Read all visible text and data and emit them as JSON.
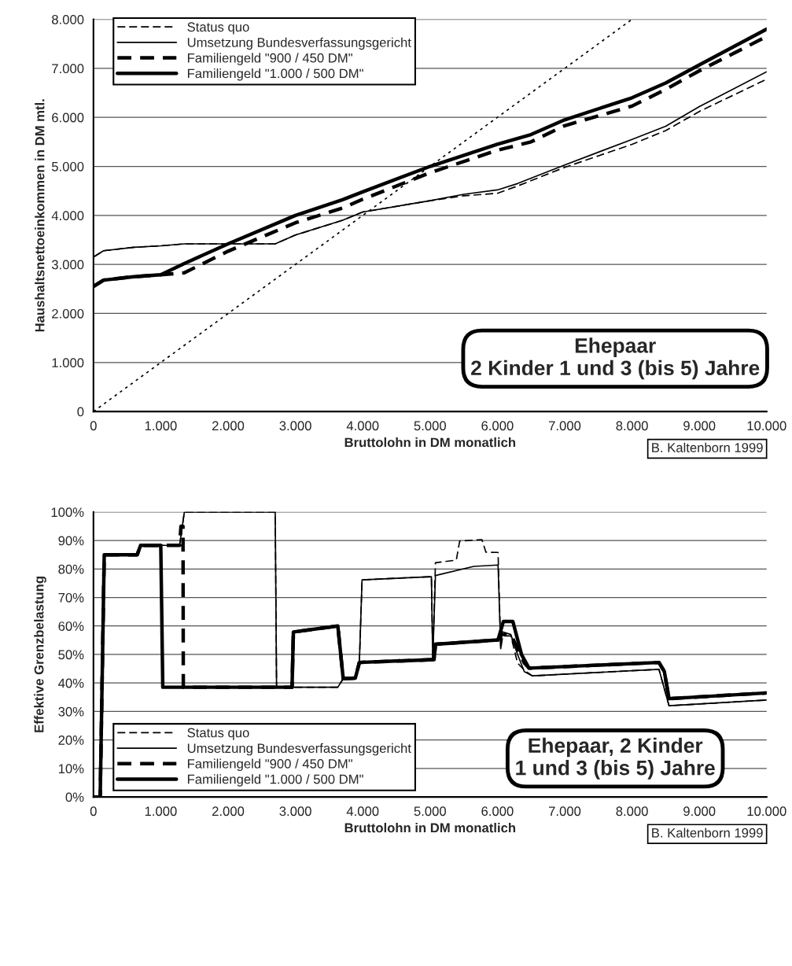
{
  "chart_data": [
    {
      "type": "line",
      "xlabel": "Bruttolohn in DM monatlich",
      "ylabel": "Haushaltsnettoeinkommen in DM mtl.",
      "xlim": [
        0,
        10000
      ],
      "ylim": [
        0,
        8000
      ],
      "xticks": [
        0,
        {
          "value": 1000,
          "label": "1.000"
        },
        {
          "value": 2000,
          "label": "2.000"
        },
        {
          "value": 3000,
          "label": "3.000"
        },
        {
          "value": 4000,
          "label": "4.000"
        },
        {
          "value": 5000,
          "label": "5.000"
        },
        {
          "value": 6000,
          "label": "6.000"
        },
        {
          "value": 7000,
          "label": "7.000"
        },
        {
          "value": 8000,
          "label": "8.000"
        },
        {
          "value": 9000,
          "label": "9.000"
        },
        {
          "value": 10000,
          "label": "10.000"
        }
      ],
      "yticks": [
        0,
        {
          "value": 1000,
          "label": "1.000"
        },
        {
          "value": 2000,
          "label": "2.000"
        },
        {
          "value": 3000,
          "label": "3.000"
        },
        {
          "value": 4000,
          "label": "4.000"
        },
        {
          "value": 5000,
          "label": "5.000"
        },
        {
          "value": 6000,
          "label": "6.000"
        },
        {
          "value": 7000,
          "label": "7.000"
        },
        {
          "value": 8000,
          "label": "8.000"
        }
      ],
      "grid": "y",
      "legend": "top left",
      "marker": "none",
      "annotations": [
        "Ehepaar\n2 Kinder 1 und 3 (bis 5) Jahre",
        "B. Kaltenborn 1999"
      ],
      "series": [
        {
          "name": "Status quo",
          "color": "#000000",
          "line_style": "dashed",
          "x": [
            0,
            150,
            600,
            1000,
            1350,
            2700,
            3000,
            3700,
            4000,
            5000,
            5500,
            6000,
            6300,
            7000,
            8000,
            8500,
            9000,
            10000
          ],
          "values": [
            3150,
            3280,
            3350,
            3380,
            3420,
            3420,
            3600,
            3900,
            4070,
            4300,
            4400,
            4450,
            4600,
            4980,
            5450,
            5730,
            6120,
            6780
          ]
        },
        {
          "name": "Umsetzung Bundesverfassungsgericht",
          "color": "#000000",
          "line_style": "solid",
          "x": [
            0,
            150,
            600,
            1000,
            1350,
            2700,
            3000,
            3700,
            4000,
            5000,
            5500,
            6000,
            6300,
            7000,
            8000,
            8500,
            9000,
            10000
          ],
          "values": [
            3150,
            3280,
            3350,
            3380,
            3420,
            3420,
            3600,
            3900,
            4070,
            4300,
            4430,
            4520,
            4650,
            5030,
            5550,
            5820,
            6220,
            6930
          ]
        },
        {
          "name": "Familiengeld \"900 / 450 DM\"",
          "color": "#000000",
          "line_style": "dashed",
          "x": [
            0,
            150,
            600,
            1000,
            1350,
            2000,
            3000,
            3700,
            4000,
            5000,
            6000,
            6500,
            7000,
            8000,
            8500,
            9000,
            10000
          ],
          "values": [
            2550,
            2680,
            2750,
            2790,
            2830,
            3270,
            3850,
            4150,
            4330,
            4870,
            5330,
            5500,
            5830,
            6230,
            6570,
            6950,
            7650
          ]
        },
        {
          "name": "Familiengeld \"1.000 / 500 DM\"",
          "color": "#000000",
          "line_style": "solid",
          "x": [
            0,
            150,
            600,
            1000,
            1350,
            2000,
            3000,
            3700,
            4000,
            5000,
            6000,
            6500,
            7000,
            8000,
            8500,
            9000,
            10000
          ],
          "values": [
            2550,
            2680,
            2750,
            2790,
            3020,
            3420,
            4000,
            4320,
            4480,
            5000,
            5450,
            5650,
            5950,
            6400,
            6700,
            7070,
            7800
          ]
        },
        {
          "color": "#000000",
          "line_style": "dotted",
          "x": [
            0,
            8000
          ],
          "values": [
            0,
            8000
          ]
        }
      ]
    },
    {
      "type": "line",
      "xlabel": "Bruttolohn in DM monatlich",
      "ylabel": "Effektive Grenzbelastung",
      "xlim": [
        0,
        10000
      ],
      "ylim": [
        0,
        100
      ],
      "xticks": [
        0,
        {
          "value": 1000,
          "label": "1.000"
        },
        {
          "value": 2000,
          "label": "2.000"
        },
        {
          "value": 3000,
          "label": "3.000"
        },
        {
          "value": 4000,
          "label": "4.000"
        },
        {
          "value": 5000,
          "label": "5.000"
        },
        {
          "value": 6000,
          "label": "6.000"
        },
        {
          "value": 7000,
          "label": "7.000"
        },
        {
          "value": 8000,
          "label": "8.000"
        },
        {
          "value": 9000,
          "label": "9.000"
        },
        {
          "value": 10000,
          "label": "10.000"
        }
      ],
      "yticks": [
        {
          "value": 0,
          "label": "0%"
        },
        {
          "value": 10,
          "label": "10%"
        },
        {
          "value": 20,
          "label": "20%"
        },
        {
          "value": 30,
          "label": "30%"
        },
        {
          "value": 40,
          "label": "40%"
        },
        {
          "value": 50,
          "label": "50%"
        },
        {
          "value": 60,
          "label": "60%"
        },
        {
          "value": 70,
          "label": "70%"
        },
        {
          "value": 80,
          "label": "80%"
        },
        {
          "value": 90,
          "label": "90%"
        },
        {
          "value": 100,
          "label": "100%"
        }
      ],
      "grid": "y",
      "legend": "bottom left",
      "marker": "none",
      "annotations": [
        "Ehepaar, 2 Kinder\n1 und 3 (bis 5) Jahre",
        "B. Kaltenborn 1999"
      ],
      "series": [
        {
          "name": "Status quo",
          "color": "#000000",
          "line_style": "dashed",
          "x": [
            0,
            100,
            160,
            650,
            700,
            1280,
            1350,
            2700,
            2720,
            2970,
            3630,
            3710,
            3890,
            3950,
            3990,
            5020,
            5040,
            5080,
            5390,
            5440,
            5770,
            5830,
            6010,
            6050,
            6080,
            6200,
            6300,
            6400,
            6520,
            8400,
            8550,
            10000
          ],
          "values": [
            0,
            0,
            85,
            85,
            88.3,
            88.3,
            100,
            100,
            38.5,
            38.5,
            38.5,
            41.5,
            41.7,
            47.2,
            76.2,
            77.3,
            48,
            82.2,
            83.1,
            89.8,
            90.3,
            85.9,
            85.8,
            52,
            56.5,
            56.5,
            47,
            44.5,
            42.5,
            44.8,
            32,
            34
          ]
        },
        {
          "name": "Umsetzung Bundesverfassungsgericht",
          "color": "#000000",
          "line_style": "solid",
          "x": [
            0,
            100,
            160,
            650,
            700,
            1280,
            1350,
            2700,
            2720,
            2970,
            3630,
            3710,
            3890,
            3950,
            3990,
            5020,
            5040,
            5080,
            5650,
            6010,
            6050,
            6070,
            6200,
            6300,
            6400,
            6520,
            8400,
            8550,
            10000
          ],
          "values": [
            0,
            0,
            85,
            85,
            88.3,
            88.3,
            100,
            100,
            38.5,
            38.5,
            38.5,
            41.5,
            41.7,
            47.2,
            76.2,
            77.3,
            48,
            77.7,
            80.9,
            81.4,
            52,
            58,
            57,
            50,
            44,
            42.5,
            44.8,
            32,
            34
          ]
        },
        {
          "name": "Familiengeld \"900 / 450 DM\"",
          "color": "#000000",
          "line_style": "dashed",
          "x": [
            0,
            100,
            160,
            650,
            700,
            1280,
            1300,
            1330,
            1335,
            2950,
            2970,
            3630,
            3710,
            3890,
            3950,
            5060,
            5080,
            6010,
            6050,
            6200,
            6300,
            6400,
            6470,
            8400,
            8480,
            8550,
            10000
          ],
          "values": [
            0,
            0,
            85,
            85,
            88.3,
            88.3,
            95,
            95,
            38.5,
            38.5,
            57.9,
            60,
            41.5,
            41.7,
            47.2,
            48.2,
            53.6,
            55.1,
            57,
            57,
            52,
            47,
            45.2,
            47.2,
            44,
            34.5,
            36.5
          ]
        },
        {
          "name": "Familiengeld \"1.000 / 500 DM\"",
          "color": "#000000",
          "line_style": "solid",
          "x": [
            0,
            100,
            160,
            650,
            700,
            1000,
            1030,
            2950,
            2970,
            3630,
            3710,
            3890,
            3950,
            5060,
            5080,
            6010,
            6090,
            6230,
            6360,
            6470,
            8400,
            8480,
            8550,
            10000
          ],
          "values": [
            0,
            0,
            85,
            85,
            88.3,
            88.3,
            38.5,
            38.5,
            57.9,
            60,
            41.5,
            41.7,
            47.2,
            48.2,
            53.6,
            55.1,
            61.6,
            61.6,
            49.9,
            45.2,
            47.2,
            44,
            34.5,
            36.5
          ]
        }
      ]
    }
  ]
}
